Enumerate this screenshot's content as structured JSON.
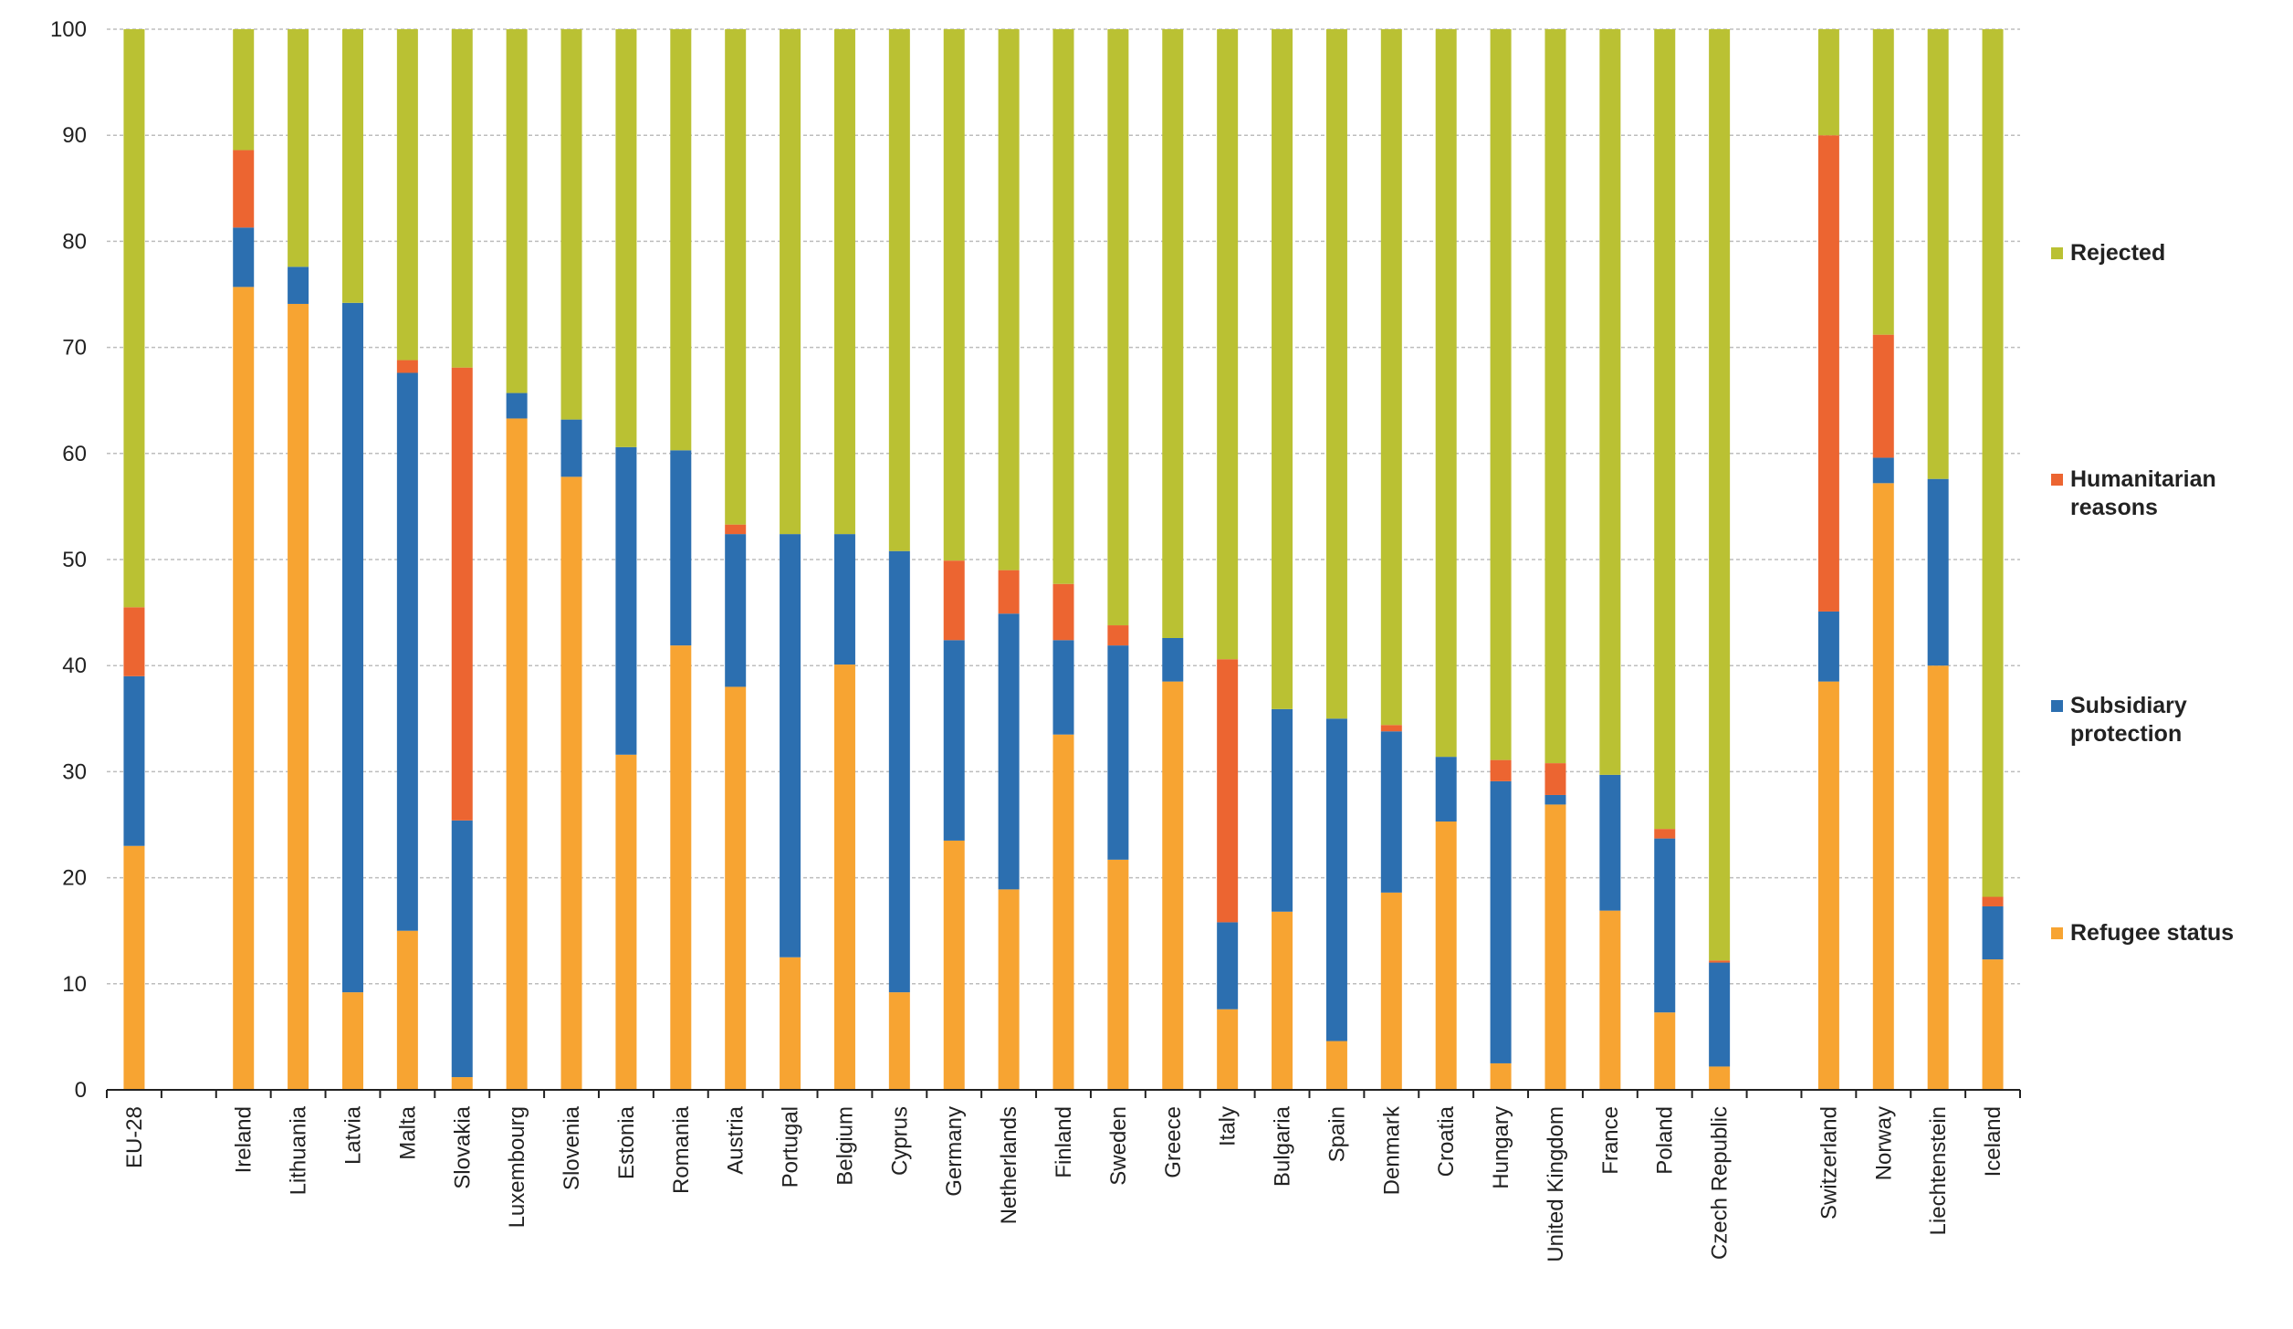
{
  "chart_data": {
    "type": "bar",
    "stacked": true,
    "title": "",
    "xlabel": "",
    "ylabel": "",
    "ylim": [
      0,
      100
    ],
    "yticks": [
      "0",
      "10",
      "20",
      "30",
      "40",
      "50",
      "60",
      "70",
      "80",
      "90",
      "100"
    ],
    "grid": true,
    "legend_position": "right",
    "categories": [
      "EU-28",
      "",
      "Ireland",
      "Lithuania",
      "Latvia",
      "Malta",
      "Slovakia",
      "Luxembourg",
      "Slovenia",
      "Estonia",
      "Romania",
      "Austria",
      "Portugal",
      "Belgium",
      "Cyprus",
      "Germany",
      "Netherlands",
      "Finland",
      "Sweden",
      "Greece",
      "Italy",
      "Bulgaria",
      "Spain",
      "Denmark",
      "Croatia",
      "Hungary",
      "United Kingdom",
      "France",
      "Poland",
      "Czech Republic",
      "",
      "Switzerland",
      "Norway",
      "Liechtenstein",
      "Iceland"
    ],
    "series": [
      {
        "name": "Refugee status",
        "color": "#F7A432",
        "values": [
          23.0,
          null,
          75.7,
          74.1,
          9.2,
          15.0,
          1.2,
          63.3,
          57.8,
          31.6,
          41.9,
          38.0,
          12.5,
          40.1,
          9.2,
          23.5,
          18.9,
          33.5,
          21.7,
          38.5,
          7.6,
          16.8,
          4.6,
          18.6,
          25.3,
          2.5,
          26.9,
          16.9,
          7.3,
          2.2,
          null,
          38.5,
          57.2,
          40.0,
          12.3
        ]
      },
      {
        "name": "Subsidiary protection",
        "color": "#2C6FB0",
        "values": [
          16.0,
          null,
          5.6,
          3.5,
          65.0,
          52.6,
          24.2,
          2.4,
          5.4,
          29.0,
          18.4,
          14.4,
          39.9,
          12.3,
          41.6,
          18.9,
          26.0,
          8.9,
          20.2,
          4.1,
          8.2,
          19.1,
          30.4,
          15.2,
          6.1,
          26.6,
          0.9,
          12.8,
          16.4,
          9.8,
          null,
          6.6,
          2.4,
          17.6,
          5.0
        ]
      },
      {
        "name": "Humanitarian reasons",
        "color": "#EC6531",
        "values": [
          6.5,
          null,
          7.3,
          0,
          0,
          1.2,
          42.7,
          0,
          0,
          0,
          0,
          0.9,
          0,
          0,
          0,
          7.5,
          4.1,
          5.3,
          1.9,
          0,
          24.8,
          0,
          0,
          0.6,
          0,
          2.0,
          3.0,
          0,
          0.9,
          0.2,
          null,
          44.9,
          11.6,
          0,
          0.9
        ]
      },
      {
        "name": "Rejected",
        "color": "#BAC133",
        "values": [
          54.5,
          null,
          11.4,
          22.4,
          25.8,
          31.2,
          31.9,
          34.3,
          36.8,
          39.4,
          39.7,
          46.7,
          47.6,
          47.6,
          49.2,
          50.1,
          51.0,
          52.3,
          56.2,
          57.4,
          59.4,
          64.1,
          65.0,
          65.6,
          68.6,
          68.9,
          69.2,
          70.3,
          75.4,
          87.8,
          null,
          10.0,
          28.8,
          42.4,
          81.8
        ]
      }
    ],
    "legend": [
      {
        "label_lines": [
          "Rejected"
        ],
        "series": "Rejected"
      },
      {
        "label_lines": [
          "Humanitarian",
          "reasons"
        ],
        "series": "Humanitarian reasons"
      },
      {
        "label_lines": [
          "Subsidiary",
          "protection"
        ],
        "series": "Subsidiary protection"
      },
      {
        "label_lines": [
          "Refugee status"
        ],
        "series": "Refugee status"
      }
    ]
  }
}
